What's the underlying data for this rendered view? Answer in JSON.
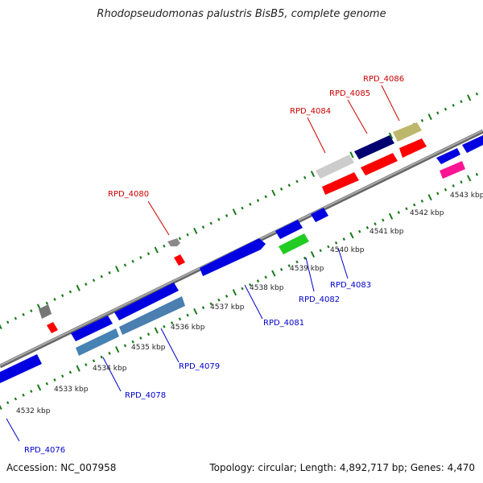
{
  "title": "Rhodopseudomonas palustris BisB5, complete genome",
  "footer": {
    "accession": "Accession: NC_007958",
    "summary": "Topology: circular; Length: 4,892,717 bp; Genes: 4,470"
  },
  "colors": {
    "backbone": "#888888",
    "tick": "#1a7a1a",
    "label_top": "#cc0000",
    "label_bottom": "#0000cc"
  },
  "tick_labels": [
    "4532 kbp",
    "4533 kbp",
    "4534 kbp",
    "4535 kbp",
    "4536 kbp",
    "4537 kbp",
    "4538 kbp",
    "4539 kbp",
    "4540 kbp",
    "4541 kbp",
    "4542 kbp",
    "4543 kbp"
  ],
  "gene_labels_top": [
    "RPD_4080",
    "RPD_4084",
    "RPD_4085",
    "RPD_4086"
  ],
  "gene_labels_bottom": [
    "RPD_4076",
    "RPD_4078",
    "RPD_4079",
    "RPD_4081",
    "RPD_4082",
    "RPD_4083"
  ]
}
